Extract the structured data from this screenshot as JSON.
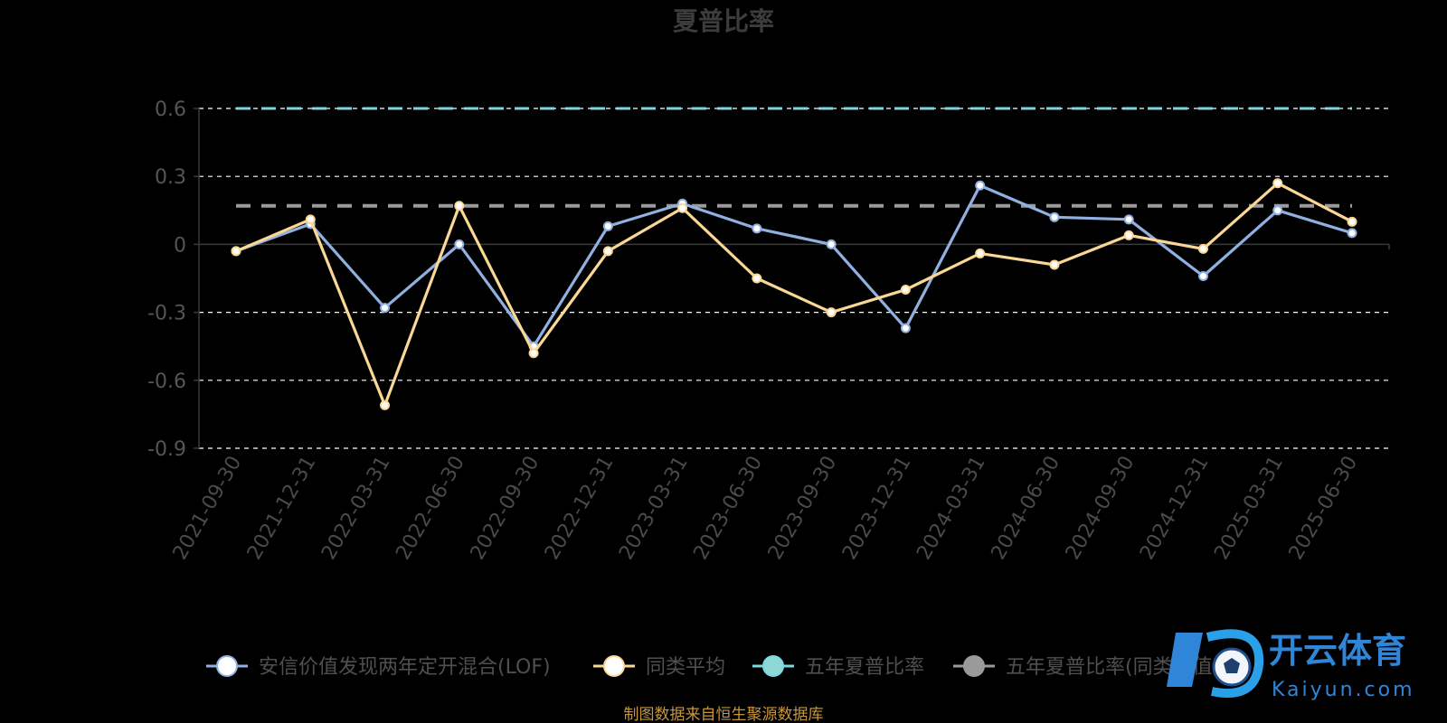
{
  "chart_data": {
    "type": "line",
    "title": "夏普比率",
    "categories": [
      "2021-09-30",
      "2021-12-31",
      "2022-03-31",
      "2022-06-30",
      "2022-09-30",
      "2022-12-31",
      "2023-03-31",
      "2023-06-30",
      "2023-09-30",
      "2023-12-31",
      "2024-03-31",
      "2024-06-30",
      "2024-09-30",
      "2024-12-31",
      "2025-03-31",
      "2025-06-30"
    ],
    "ylim": [
      -0.9,
      0.6
    ],
    "yticks": [
      0.6,
      0.3,
      0,
      -0.3,
      -0.6,
      -0.9
    ],
    "ytick_labels": [
      "0.6",
      "0.3",
      "0",
      "-0.3",
      "-0.6",
      "-0.9"
    ],
    "grid": true,
    "series": [
      {
        "name": "安信价值发现两年定开混合(LOF)",
        "color": "#8fb0e0",
        "marker": "circle",
        "values": [
          -0.03,
          0.09,
          -0.28,
          0.0,
          -0.45,
          0.08,
          0.18,
          0.07,
          0.0,
          -0.37,
          0.26,
          0.12,
          0.11,
          -0.14,
          0.15,
          0.05
        ]
      },
      {
        "name": "同类平均",
        "color": "#fbd796",
        "marker": "circle",
        "values": [
          -0.03,
          0.11,
          -0.71,
          0.17,
          -0.48,
          -0.03,
          0.16,
          -0.15,
          -0.3,
          -0.2,
          -0.04,
          -0.09,
          0.04,
          -0.02,
          0.27,
          0.1
        ]
      }
    ],
    "reference_lines": [
      {
        "name": "五年夏普比率",
        "color": "#7ad8e0",
        "value": 0.6
      },
      {
        "name": "五年夏普比率(同类均值)",
        "color": "#9a9a9a",
        "value": 0.17
      }
    ],
    "legend_position": "bottom",
    "legend": [
      {
        "label": "安信价值发现两年定开混合(LOF)",
        "color": "#8fb0e0",
        "fill": "#ffffff"
      },
      {
        "label": "同类平均",
        "color": "#fbd796",
        "fill": "#ffffff"
      },
      {
        "label": "五年夏普比率",
        "color": "#7ad8e0",
        "fill": "#8fd8d8"
      },
      {
        "label": "五年夏普比率(同类均值)",
        "color": "#9a9a9a",
        "fill": "#9a9a9a"
      }
    ],
    "source": "制图数据来自恒生聚源数据库"
  },
  "watermark": {
    "brand_cn": "开云体育",
    "brand_en": "Kaiyun.com"
  }
}
